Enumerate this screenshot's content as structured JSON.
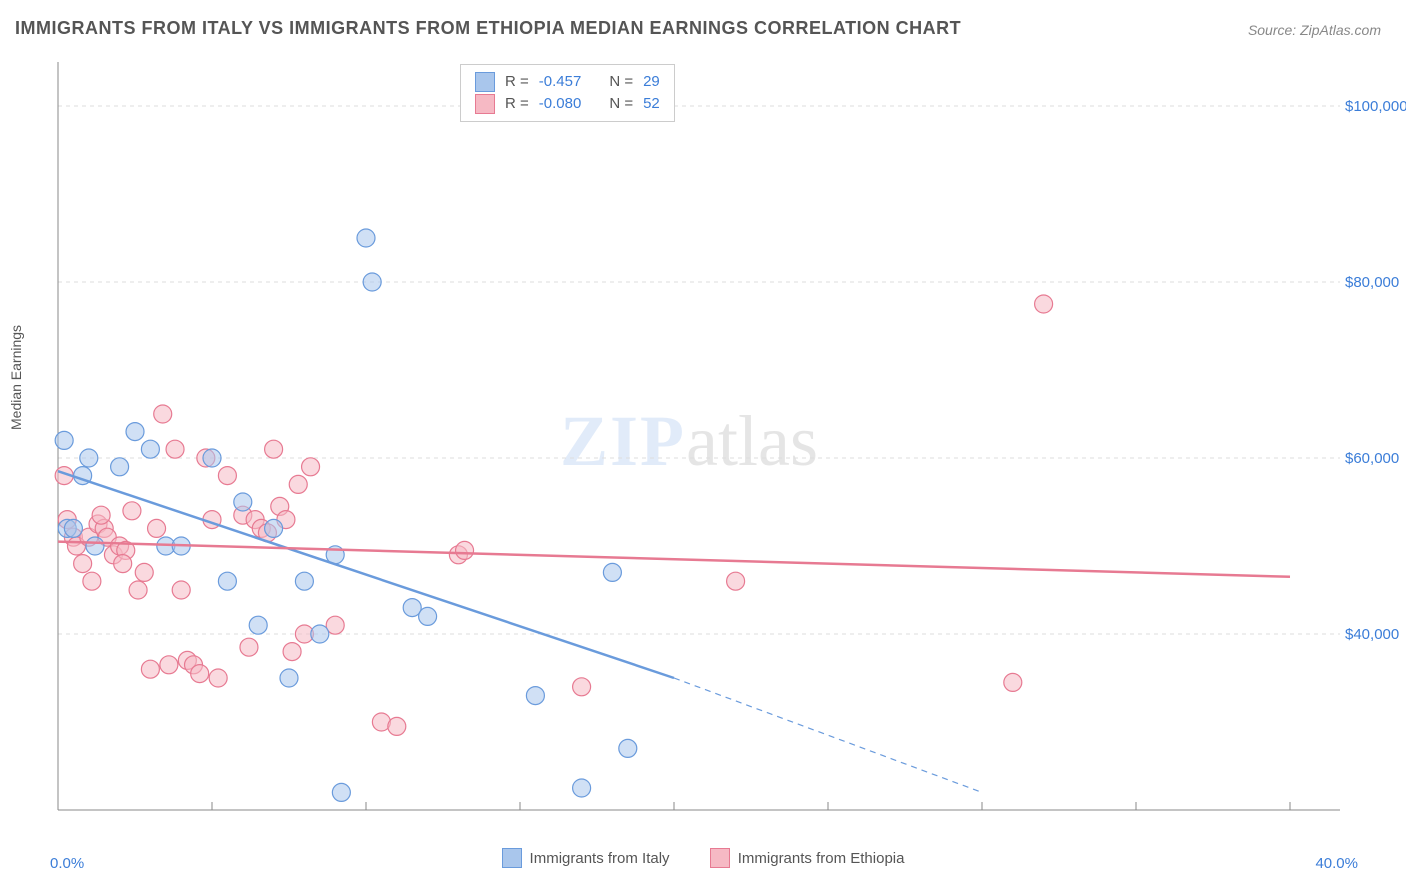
{
  "title": "IMMIGRANTS FROM ITALY VS IMMIGRANTS FROM ETHIOPIA MEDIAN EARNINGS CORRELATION CHART",
  "source": "Source: ZipAtlas.com",
  "y_axis_label": "Median Earnings",
  "watermark": {
    "zip": "ZIP",
    "atlas": "atlas"
  },
  "chart": {
    "type": "scatter",
    "background_color": "#ffffff",
    "grid_color": "#dddddd",
    "axis_color": "#888888",
    "tick_label_color": "#3b7dd8",
    "tick_fontsize": 15,
    "xlim": [
      0,
      40
    ],
    "ylim": [
      20000,
      105000
    ],
    "y_ticks": [
      40000,
      60000,
      80000,
      100000
    ],
    "y_tick_labels": [
      "$40,000",
      "$60,000",
      "$80,000",
      "$100,000"
    ],
    "x_tick_left": "0.0%",
    "x_tick_right": "40.0%",
    "marker_radius": 9,
    "marker_stroke_width": 1.2,
    "trend_line_width": 2.5,
    "series": [
      {
        "name": "Immigrants from Italy",
        "fill": "#a9c6ec",
        "stroke": "#6a9bdc",
        "fill_opacity": 0.55,
        "R": "-0.457",
        "N": "29",
        "trend": {
          "x1": 0,
          "y1": 58500,
          "x2": 20,
          "y2": 35000,
          "extend_dash_to_x": 30,
          "extend_dash_to_y": 22000
        },
        "points": [
          [
            0.2,
            62000
          ],
          [
            0.3,
            52000
          ],
          [
            0.5,
            52000
          ],
          [
            0.8,
            58000
          ],
          [
            1.0,
            60000
          ],
          [
            1.2,
            50000
          ],
          [
            2.0,
            59000
          ],
          [
            2.5,
            63000
          ],
          [
            3.0,
            61000
          ],
          [
            3.5,
            50000
          ],
          [
            4.0,
            50000
          ],
          [
            5.0,
            60000
          ],
          [
            5.5,
            46000
          ],
          [
            6.0,
            55000
          ],
          [
            6.5,
            41000
          ],
          [
            7.0,
            52000
          ],
          [
            7.5,
            35000
          ],
          [
            8.0,
            46000
          ],
          [
            8.5,
            40000
          ],
          [
            9.0,
            49000
          ],
          [
            9.2,
            22000
          ],
          [
            10.0,
            85000
          ],
          [
            10.2,
            80000
          ],
          [
            11.5,
            43000
          ],
          [
            12.0,
            42000
          ],
          [
            15.5,
            33000
          ],
          [
            17.0,
            22500
          ],
          [
            18.0,
            47000
          ],
          [
            18.5,
            27000
          ]
        ]
      },
      {
        "name": "Immigrants from Ethiopia",
        "fill": "#f6b9c4",
        "stroke": "#e77a92",
        "fill_opacity": 0.55,
        "R": "-0.080",
        "N": "52",
        "trend": {
          "x1": 0,
          "y1": 50500,
          "x2": 40,
          "y2": 46500
        },
        "points": [
          [
            0.2,
            58000
          ],
          [
            0.3,
            53000
          ],
          [
            0.5,
            51000
          ],
          [
            0.6,
            50000
          ],
          [
            0.8,
            48000
          ],
          [
            1.0,
            51000
          ],
          [
            1.1,
            46000
          ],
          [
            1.3,
            52500
          ],
          [
            1.5,
            52000
          ],
          [
            1.6,
            51000
          ],
          [
            1.8,
            49000
          ],
          [
            2.0,
            50000
          ],
          [
            2.2,
            49500
          ],
          [
            2.4,
            54000
          ],
          [
            2.6,
            45000
          ],
          [
            2.8,
            47000
          ],
          [
            3.0,
            36000
          ],
          [
            3.2,
            52000
          ],
          [
            3.4,
            65000
          ],
          [
            3.6,
            36500
          ],
          [
            3.8,
            61000
          ],
          [
            4.0,
            45000
          ],
          [
            4.2,
            37000
          ],
          [
            4.4,
            36500
          ],
          [
            4.6,
            35500
          ],
          [
            4.8,
            60000
          ],
          [
            5.0,
            53000
          ],
          [
            5.2,
            35000
          ],
          [
            5.5,
            58000
          ],
          [
            6.0,
            53500
          ],
          [
            6.2,
            38500
          ],
          [
            6.4,
            53000
          ],
          [
            6.6,
            52000
          ],
          [
            6.8,
            51500
          ],
          [
            7.0,
            61000
          ],
          [
            7.2,
            54500
          ],
          [
            7.4,
            53000
          ],
          [
            7.6,
            38000
          ],
          [
            7.8,
            57000
          ],
          [
            8.0,
            40000
          ],
          [
            8.2,
            59000
          ],
          [
            9.0,
            41000
          ],
          [
            10.5,
            30000
          ],
          [
            11.0,
            29500
          ],
          [
            13.0,
            49000
          ],
          [
            13.2,
            49500
          ],
          [
            17.0,
            34000
          ],
          [
            22.0,
            46000
          ],
          [
            31.0,
            34500
          ],
          [
            32.0,
            77500
          ],
          [
            1.4,
            53500
          ],
          [
            2.1,
            48000
          ]
        ]
      }
    ]
  },
  "bottom_legend": {
    "items": [
      {
        "label": "Immigrants from Italy",
        "fill": "#a9c6ec",
        "stroke": "#6a9bdc"
      },
      {
        "label": "Immigrants from Ethiopia",
        "fill": "#f6b9c4",
        "stroke": "#e77a92"
      }
    ]
  }
}
